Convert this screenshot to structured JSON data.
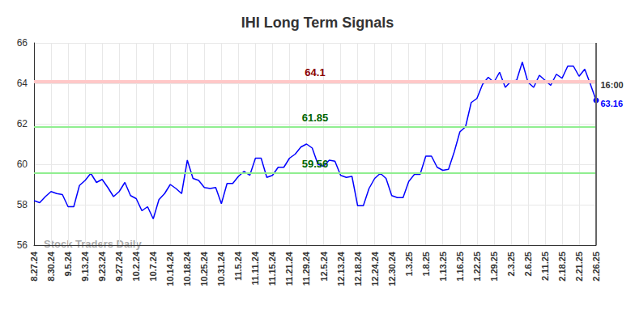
{
  "chart_data": {
    "type": "line",
    "title": "IHI Long Term Signals",
    "categories": [
      "8.27.24",
      null,
      null,
      "8.30.24",
      null,
      null,
      "9.5.24",
      null,
      null,
      "9.13.24",
      null,
      null,
      "9.23.24",
      null,
      null,
      "9.27.24",
      null,
      null,
      "10.2.24",
      null,
      null,
      "10.7.24",
      null,
      null,
      "10.14.24",
      null,
      null,
      "10.18.24",
      null,
      null,
      "10.25.24",
      null,
      null,
      "10.31.24",
      null,
      null,
      "11.5.24",
      null,
      null,
      "11.11.24",
      null,
      null,
      "11.15.24",
      null,
      null,
      "11.21.24",
      null,
      null,
      "11.29.24",
      null,
      null,
      "12.5.24",
      null,
      null,
      "12.13.24",
      null,
      null,
      "12.18.24",
      null,
      null,
      "12.24.24",
      null,
      null,
      "12.30.24",
      null,
      null,
      "1.3.25",
      null,
      null,
      "1.8.25",
      null,
      null,
      "1.13.25",
      null,
      null,
      "1.16.25",
      null,
      null,
      "1.22.25",
      null,
      null,
      "1.29.25",
      null,
      null,
      "2.3.25",
      null,
      null,
      "2.6.25",
      null,
      null,
      "2.11.25",
      null,
      null,
      "2.18.25",
      null,
      null,
      "2.21.25",
      null,
      null,
      "2.26.25"
    ],
    "values": [
      58.2,
      58.1,
      58.4,
      58.65,
      58.55,
      58.5,
      57.9,
      57.9,
      58.95,
      59.2,
      59.55,
      59.1,
      59.25,
      58.85,
      58.4,
      58.65,
      59.1,
      58.45,
      58.3,
      57.7,
      57.9,
      57.3,
      58.25,
      58.55,
      59.0,
      58.8,
      58.55,
      60.2,
      59.3,
      59.2,
      58.85,
      58.8,
      58.85,
      58.05,
      59.05,
      59.05,
      59.4,
      59.65,
      59.45,
      60.3,
      60.3,
      59.35,
      59.45,
      59.85,
      59.85,
      60.3,
      60.5,
      60.85,
      61.0,
      60.8,
      60.0,
      59.9,
      60.2,
      60.15,
      59.45,
      59.35,
      59.4,
      57.95,
      57.95,
      58.8,
      59.3,
      59.55,
      59.3,
      58.45,
      58.35,
      58.35,
      59.15,
      59.5,
      59.5,
      60.4,
      60.4,
      59.85,
      59.7,
      59.75,
      60.6,
      61.6,
      61.85,
      63.05,
      63.25,
      63.95,
      64.3,
      64.05,
      64.55,
      63.8,
      64.1,
      64.15,
      65.05,
      64.05,
      63.8,
      64.4,
      64.15,
      63.9,
      64.45,
      64.25,
      64.85,
      64.85,
      64.35,
      64.7,
      63.95,
      63.16
    ],
    "color": "#0000ff",
    "ylim": [
      56,
      66
    ],
    "yticks": [
      56,
      58,
      60,
      62,
      64,
      66
    ],
    "grid": true,
    "reference_lines": [
      {
        "value": 64.1,
        "label": "64.1",
        "color": "#8b0000"
      },
      {
        "value": 61.85,
        "label": "61.85",
        "color": "#006400"
      },
      {
        "value": 59.56,
        "label": "59.56",
        "color": "#006400"
      }
    ],
    "last_point_label": {
      "time": "16:00",
      "value": 63.16
    },
    "watermark": "Stock Traders Daily"
  }
}
